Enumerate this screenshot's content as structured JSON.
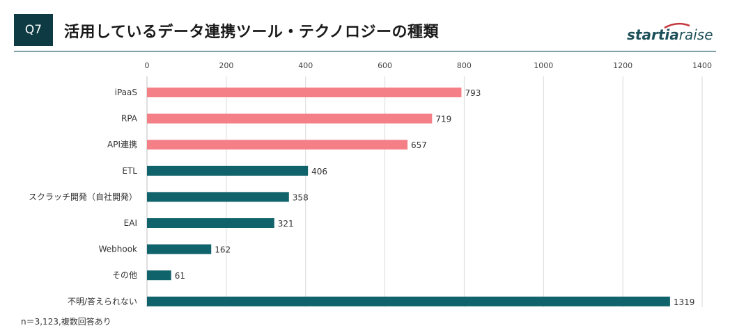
{
  "header": {
    "badge": "Q7",
    "title": "活用しているデータ連携ツール・テクノロジーの種類",
    "logo_bold": "startia",
    "logo_light": "raise"
  },
  "colors": {
    "highlight": "#f47f87",
    "default": "#10626b",
    "badge": "#0e3b43",
    "grid": "#d9d9d9"
  },
  "chart_data": {
    "type": "bar",
    "orientation": "horizontal",
    "categories": [
      "iPaaS",
      "RPA",
      "API連携",
      "ETL",
      "スクラッチ開発（自社開発）",
      "EAI",
      "Webhook",
      "その他",
      "不明/答えられない"
    ],
    "values": [
      793,
      719,
      657,
      406,
      358,
      321,
      162,
      61,
      1319
    ],
    "highlighted": [
      true,
      true,
      true,
      false,
      false,
      false,
      false,
      false,
      false
    ],
    "xlim": [
      0,
      1400
    ],
    "xticks": [
      "0",
      "200",
      "400",
      "600",
      "800",
      "1000",
      "1200",
      "1400"
    ],
    "axis_position": "top",
    "grid": true
  },
  "footnote": "n＝3,123,複数回答あり"
}
